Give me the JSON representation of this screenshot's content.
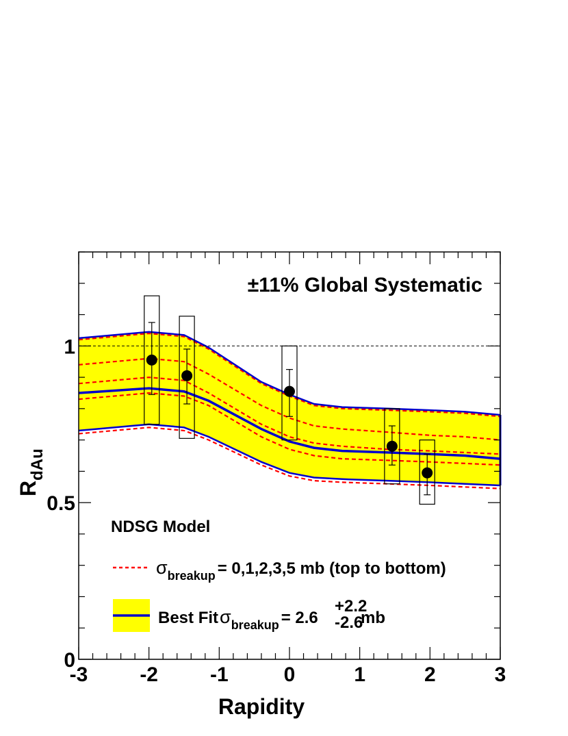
{
  "chart_data": {
    "type": "line",
    "xlabel": "Rapidity",
    "ylabel": {
      "main": "R",
      "sub": "dAu"
    },
    "xlim": [
      -3,
      3
    ],
    "ylim": [
      0,
      1.3
    ],
    "x_ticks": [
      "-3",
      "-2",
      "-1",
      "0",
      "1",
      "2",
      "3"
    ],
    "y_ticks": [
      {
        "value": 0,
        "label": "0"
      },
      {
        "value": 0.5,
        "label": "0.5"
      },
      {
        "value": 1,
        "label": "1"
      }
    ],
    "reference_line": {
      "y": 1.0,
      "style": "dashed"
    },
    "model_x": [
      -3.0,
      -2.0,
      -1.5,
      -1.15,
      -0.4,
      0.0,
      0.35,
      0.75,
      1.4,
      2.0,
      2.5,
      3.0
    ],
    "dashed_curves": [
      {
        "label": "0 mb",
        "values": [
          1.02,
          1.04,
          1.03,
          0.99,
          0.88,
          0.84,
          0.81,
          0.8,
          0.795,
          0.79,
          0.785,
          0.775
        ]
      },
      {
        "label": "1 mb",
        "values": [
          0.94,
          0.96,
          0.95,
          0.91,
          0.81,
          0.77,
          0.745,
          0.735,
          0.725,
          0.715,
          0.71,
          0.7
        ]
      },
      {
        "label": "2 mb",
        "values": [
          0.88,
          0.9,
          0.89,
          0.85,
          0.75,
          0.71,
          0.69,
          0.68,
          0.67,
          0.665,
          0.66,
          0.655
        ]
      },
      {
        "label": "3 mb",
        "values": [
          0.83,
          0.85,
          0.84,
          0.81,
          0.71,
          0.67,
          0.65,
          0.64,
          0.635,
          0.63,
          0.625,
          0.62
        ]
      },
      {
        "label": "5 mb",
        "values": [
          0.72,
          0.74,
          0.73,
          0.7,
          0.62,
          0.585,
          0.57,
          0.565,
          0.56,
          0.555,
          0.55,
          0.545
        ]
      }
    ],
    "band": {
      "upper": [
        1.025,
        1.045,
        1.035,
        0.995,
        0.885,
        0.845,
        0.815,
        0.805,
        0.8,
        0.795,
        0.79,
        0.78
      ],
      "lower": [
        0.73,
        0.75,
        0.74,
        0.71,
        0.63,
        0.595,
        0.58,
        0.575,
        0.57,
        0.565,
        0.56,
        0.555
      ],
      "best_fit": [
        0.85,
        0.865,
        0.855,
        0.825,
        0.735,
        0.695,
        0.675,
        0.665,
        0.66,
        0.655,
        0.65,
        0.64
      ],
      "color": "#ffff00",
      "line_color": "#0000cc"
    },
    "data_points": [
      {
        "x": -1.96,
        "y": 0.955,
        "stat_low": 0.845,
        "stat_high": 1.075,
        "sys_low": 0.75,
        "sys_high": 1.16
      },
      {
        "x": -1.46,
        "y": 0.905,
        "stat_low": 0.815,
        "stat_high": 0.99,
        "sys_low": 0.705,
        "sys_high": 1.095
      },
      {
        "x": 0.0,
        "y": 0.855,
        "stat_low": 0.775,
        "stat_high": 0.925,
        "sys_low": 0.7,
        "sys_high": 1.0
      },
      {
        "x": 1.46,
        "y": 0.68,
        "stat_low": 0.62,
        "stat_high": 0.745,
        "sys_low": 0.56,
        "sys_high": 0.8
      },
      {
        "x": 1.96,
        "y": 0.595,
        "stat_low": 0.525,
        "stat_high": 0.655,
        "sys_low": 0.495,
        "sys_high": 0.7
      }
    ],
    "annotations": {
      "global_systematic": "±11% Global Systematic",
      "model_name": "NDSG Model",
      "legend_dashed": {
        "sigma": "σ",
        "sub": "breakup",
        "text": "= 0,1,2,3,5 mb (top to bottom)"
      },
      "legend_fit": {
        "prefix": "Best Fit",
        "sigma": "σ",
        "sub": "breakup",
        "eq": "= 2.6",
        "sup": "+2.2",
        "subv": "-2.6",
        "unit": "mb"
      }
    },
    "colors": {
      "dashed": "#ff0000",
      "band": "#ffff00",
      "fit": "#0000cc",
      "points": "#000000"
    }
  }
}
